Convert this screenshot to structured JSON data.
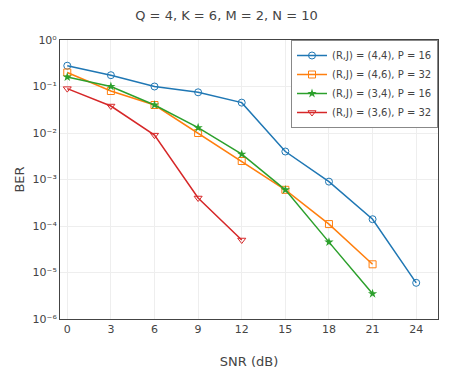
{
  "chart_data": {
    "type": "line",
    "title": "Q = 4, K = 6, M = 2, N = 10",
    "x_label": "SNR (dB)",
    "y_label": "BER",
    "log": "y",
    "grid": true,
    "legend": "upper right",
    "xlim": [
      -0.5,
      25.5
    ],
    "xticks": [
      0,
      3,
      6,
      9,
      12,
      15,
      18,
      21,
      24
    ],
    "ylim": [
      1e-06,
      1
    ],
    "yticks": [
      {
        "value": 1e-06,
        "label": "10⁻⁶"
      },
      {
        "value": 1e-05,
        "label": "10⁻⁵"
      },
      {
        "value": 0.0001,
        "label": "10⁻⁴"
      },
      {
        "value": 0.001,
        "label": "10⁻³"
      },
      {
        "value": 0.01,
        "label": "10⁻²"
      },
      {
        "value": 0.1,
        "label": "10⁻¹"
      },
      {
        "value": 1,
        "label": "10⁰"
      }
    ],
    "series": [
      {
        "name": "(R,J) = (4,4), P = 16",
        "marker": "circle",
        "x": [
          0,
          3,
          6,
          9,
          12,
          15,
          18,
          21,
          24
        ],
        "values": [
          0.28,
          0.175,
          0.1,
          0.075,
          0.045,
          0.004,
          0.0009,
          0.00014,
          6e-06
        ]
      },
      {
        "name": "(R,J) = (4,6), P = 32",
        "marker": "square",
        "x": [
          0,
          3,
          6,
          9,
          12,
          15,
          18,
          21
        ],
        "values": [
          0.2,
          0.08,
          0.04,
          0.01,
          0.0025,
          0.0006,
          0.00011,
          1.5e-05
        ]
      },
      {
        "name": "(R,J) = (3,4), P = 16",
        "marker": "star",
        "x": [
          0,
          3,
          6,
          9,
          12,
          15,
          18,
          21
        ],
        "values": [
          0.16,
          0.1,
          0.04,
          0.013,
          0.0035,
          0.0006,
          4.5e-05,
          3.5e-06
        ]
      },
      {
        "name": "(R,J) = (3,6), P = 32",
        "marker": "triangle-down",
        "x": [
          0,
          3,
          6,
          9,
          12
        ],
        "values": [
          0.09,
          0.038,
          0.009,
          0.0004,
          5e-05
        ]
      }
    ]
  }
}
